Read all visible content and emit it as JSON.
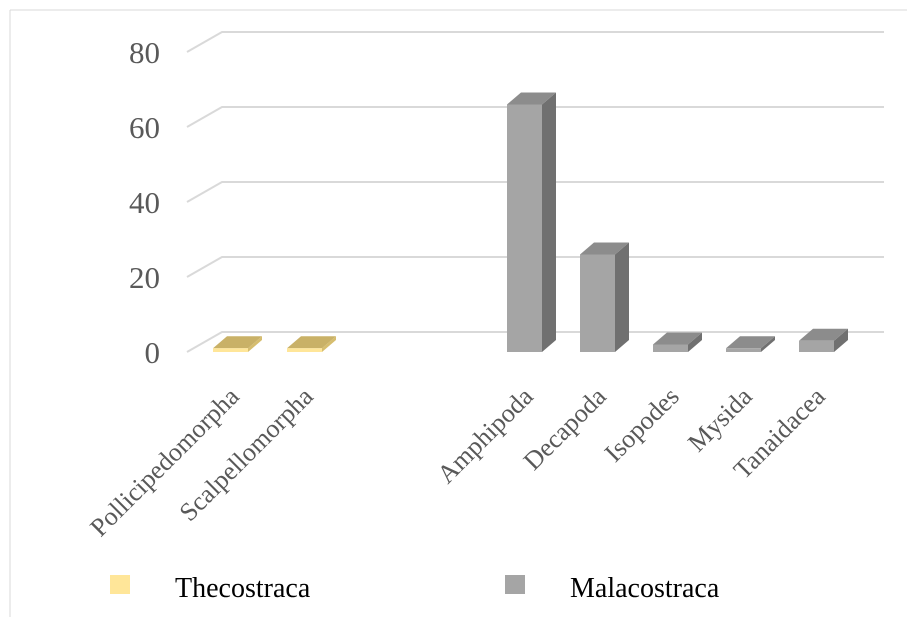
{
  "chart_data": {
    "type": "bar",
    "style": "3d-column",
    "categories": [
      "Pollicipedomorpha",
      "Scalpellomorpha",
      "",
      "Amphipoda",
      "Decapoda",
      "Isopodes",
      "Mysida",
      "Tanaidacea"
    ],
    "series": [
      {
        "name": "Thecostraca",
        "color": "#FFE699",
        "values": [
          1,
          1,
          null,
          null,
          null,
          null,
          null,
          null
        ]
      },
      {
        "name": "Malacostraca",
        "color": "#A5A5A5",
        "values": [
          null,
          null,
          null,
          66,
          26,
          2,
          1,
          3
        ]
      }
    ],
    "y_ticks": [
      "0",
      "20",
      "40",
      "60",
      "80"
    ],
    "ylim": [
      0,
      80
    ],
    "xlabel": "",
    "ylabel": "",
    "title": "",
    "grid": true,
    "legend_position": "bottom"
  }
}
